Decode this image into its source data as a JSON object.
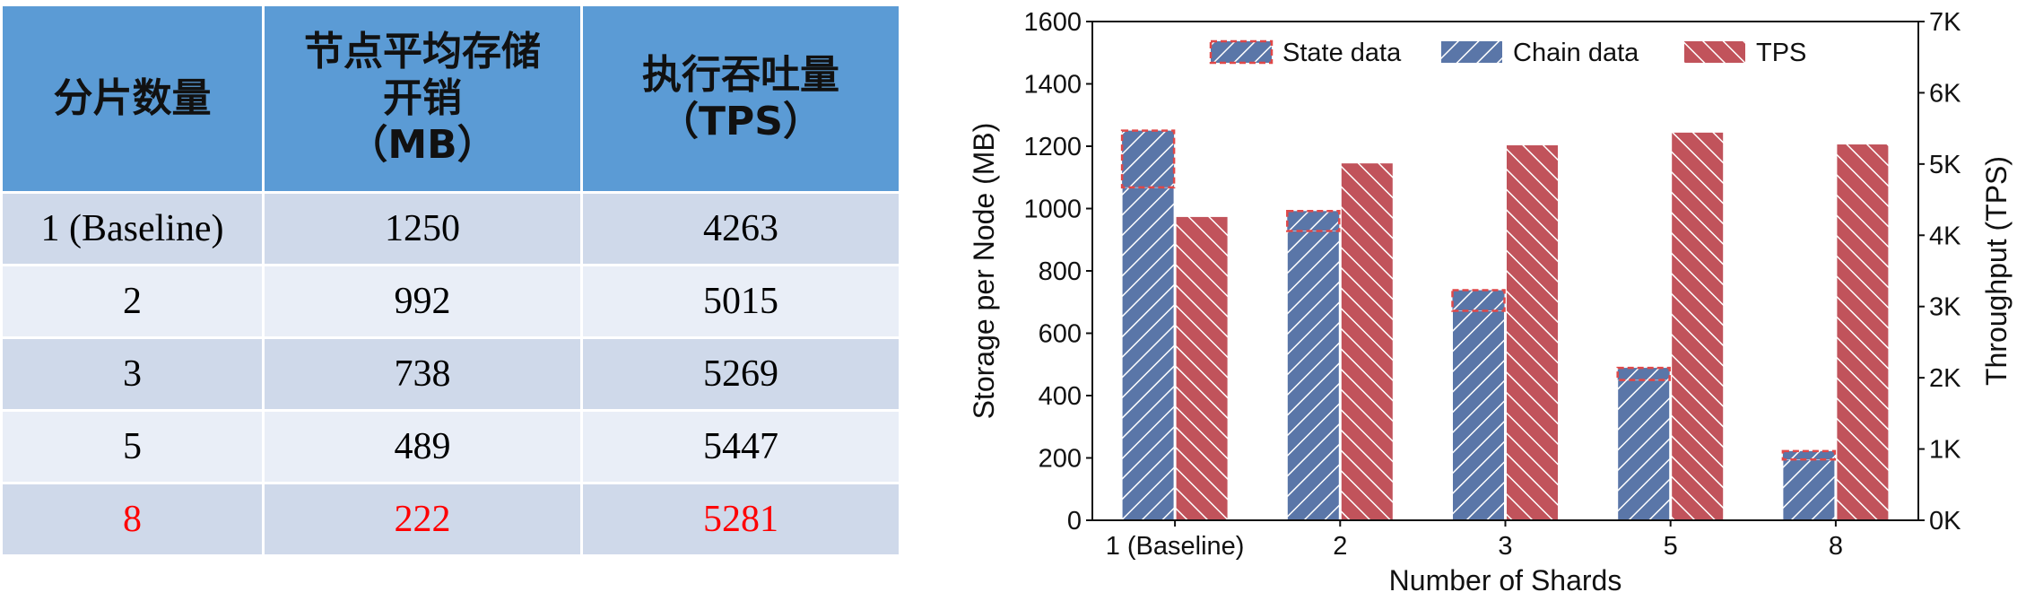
{
  "table": {
    "headers": [
      [
        "分片数量"
      ],
      [
        "节点平均存储",
        "开销",
        "（MB）"
      ],
      [
        "执行吞吐量",
        "（TPS）"
      ]
    ],
    "rows": [
      {
        "shards": "1 (Baseline)",
        "storage": "1250",
        "tps": "4263"
      },
      {
        "shards": "2",
        "storage": "992",
        "tps": "5015"
      },
      {
        "shards": "3",
        "storage": "738",
        "tps": "5269"
      },
      {
        "shards": "5",
        "storage": "489",
        "tps": "5447"
      },
      {
        "shards": "8",
        "storage": "222",
        "tps": "5281"
      }
    ],
    "highlight_row_color": "#ff0000",
    "header_color": "#5b9bd5",
    "row_colors": [
      "#cfd9ea",
      "#e9eef7"
    ]
  },
  "chart_data": {
    "type": "bar",
    "categories": [
      "1 (Baseline)",
      "2",
      "3",
      "5",
      "8"
    ],
    "series": [
      {
        "name": "Chain data",
        "axis": "left",
        "stack": "storage",
        "values": [
          1068,
          928,
          672,
          450,
          195
        ],
        "color": "#5a76a8"
      },
      {
        "name": "State data",
        "axis": "left",
        "stack": "storage",
        "values": [
          182,
          64,
          66,
          39,
          27
        ],
        "color": "#5a76a8",
        "edge": "#e04848"
      },
      {
        "name": "TPS",
        "axis": "right",
        "values": [
          4263,
          5015,
          5269,
          5447,
          5281
        ],
        "color": "#c1535b"
      }
    ],
    "legend_order": [
      "State data",
      "Chain data",
      "TPS"
    ],
    "legend_position": "top-center",
    "xlabel": "Number of Shards",
    "ylabel": "Storage per Node (MB)",
    "y2label": "Throughput (TPS)",
    "ylim": [
      0,
      1600
    ],
    "yticks": [
      "0",
      "200",
      "400",
      "600",
      "800",
      "1000",
      "1200",
      "1400",
      "1600"
    ],
    "y2lim": [
      0,
      7000
    ],
    "y2ticks": [
      "0K",
      "1K",
      "2K",
      "3K",
      "4K",
      "5K",
      "6K",
      "7K"
    ],
    "grid": false
  }
}
